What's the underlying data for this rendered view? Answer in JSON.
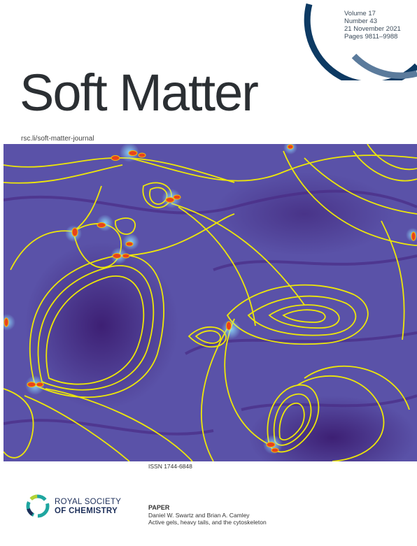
{
  "journal": {
    "title": "Soft Matter",
    "url": "rsc.li/soft-matter-journal",
    "volume": "Volume 17",
    "number": "Number 43",
    "date": "21 November 2021",
    "pages": "Pages 9811–9988",
    "issn": "ISSN 1744-6848"
  },
  "publisher": {
    "line1": "ROYAL SOCIETY",
    "line2": "OF CHEMISTRY",
    "logo_icon": "rsc-logo-icon"
  },
  "paper": {
    "label": "PAPER",
    "authors": "Daniel W. Swartz and Brian A. Camley",
    "title": "Active gels, heavy tails, and the cytoskeleton"
  },
  "colors": {
    "arc_dark": "#0d3a63",
    "arc_light": "#5b7b9c",
    "art_bg": "#5a52a8",
    "streamline": "#f6f000",
    "defect": "#e8421c"
  }
}
